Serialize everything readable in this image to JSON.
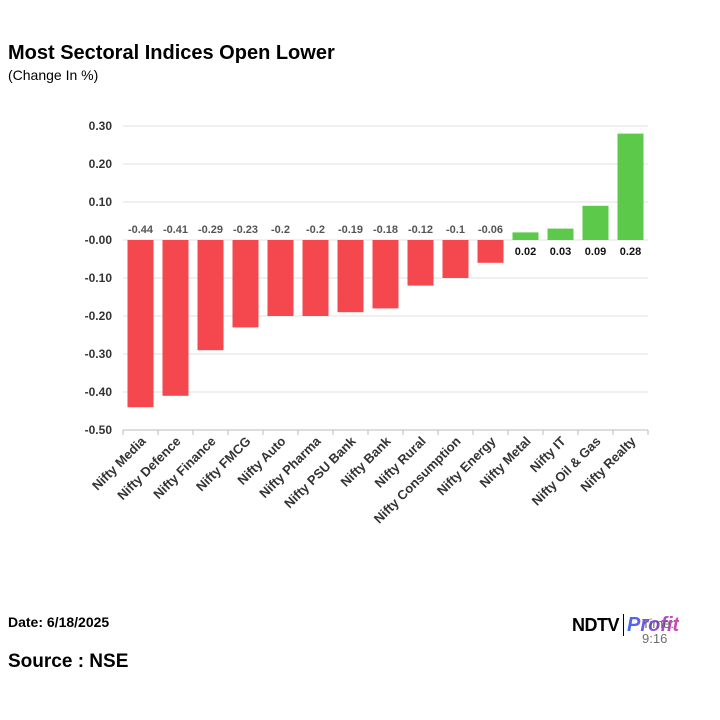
{
  "header": {
    "title": "Most Sectoral Indices Open Lower",
    "subtitle": "(Change In %)"
  },
  "footer": {
    "date": "Date: 6/18/2025",
    "source": "Source : NSE",
    "logo_ndtv": "NDTV",
    "logo_profit": "Profit",
    "logo_time": "Time: 9:16"
  },
  "colors": {
    "negative": "#f5474e",
    "positive": "#5cc94a",
    "grid": "#e0e0e0",
    "axis": "#bbbbbb"
  },
  "chart_data": {
    "type": "bar",
    "title": "Most Sectoral Indices Open Lower",
    "subtitle": "(Change In %)",
    "xlabel": "",
    "ylabel": "",
    "ylim": [
      -0.5,
      0.3
    ],
    "yticks": [
      0.3,
      0.2,
      0.1,
      0.0,
      -0.1,
      -0.2,
      -0.3,
      -0.4,
      -0.5
    ],
    "ytick_labels": [
      "0.30",
      "0.20",
      "0.10",
      "-0.00",
      "-0.10",
      "-0.20",
      "-0.30",
      "-0.40",
      "-0.50"
    ],
    "grid": true,
    "categories": [
      "Nifty Media",
      "Nifty Defence",
      "Nifty Finance",
      "Nifty FMCG",
      "Nifty Auto",
      "Nifty Pharma",
      "Nifty PSU Bank",
      "Nifty Bank",
      "Nifty Rural",
      "Nifty Consumption",
      "Nifty Energy",
      "Nifty Metal",
      "Nifty IT",
      "Nifty Oil & Gas",
      "Nifty Realty"
    ],
    "values": [
      -0.44,
      -0.41,
      -0.29,
      -0.23,
      -0.2,
      -0.2,
      -0.19,
      -0.18,
      -0.12,
      -0.1,
      -0.06,
      0.02,
      0.03,
      0.09,
      0.28
    ],
    "value_labels": [
      "-0.44",
      "-0.41",
      "-0.29",
      "-0.23",
      "-0.2",
      "-0.2",
      "-0.19",
      "-0.18",
      "-0.12",
      "-0.1",
      "-0.06",
      "0.02",
      "0.03",
      "0.09",
      "0.28"
    ]
  }
}
